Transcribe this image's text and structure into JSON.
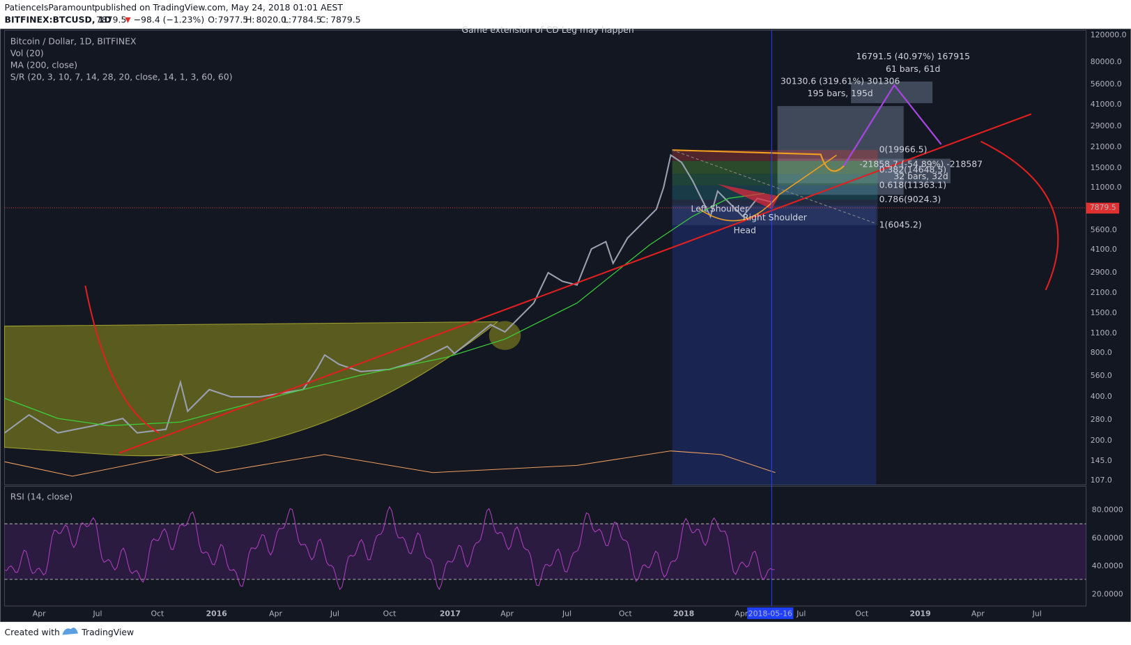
{
  "header": {
    "author": "PatienceIsParamount",
    "published": "published on TradingView.com, May 24, 2018 01:01 AEST"
  },
  "symbol_bar": {
    "symbol": "BITFINEX:BTCUSD, 1D",
    "last": "7879.5",
    "change": "−98.4 (−1.23%)",
    "open_label": "O:",
    "open": "7977.5",
    "high_label": "H:",
    "high": "8020.0",
    "low_label": "L:",
    "low": "7784.5",
    "close_label": "C:",
    "close": "7879.5"
  },
  "legend": [
    "Bitcoin / Dollar, 1D, BITFINEX",
    "Vol (20)",
    "MA (200, close)",
    "S/R (20, 3, 10, 7, 14, 28, 20, close, 14, 1, 3, 60, 60)"
  ],
  "price_axis": [
    "120000.0",
    "80000.0",
    "56000.0",
    "41000.0",
    "29000.0",
    "21000.0",
    "15000.0",
    "11000.0",
    "5600.0",
    "4100.0",
    "2900.0",
    "2100.0",
    "1500.0",
    "1100.0",
    "800.0",
    "560.0",
    "400.0",
    "280.0",
    "200.0",
    "145.0",
    "107.0"
  ],
  "current_price": "7879.5",
  "time_axis": [
    "Apr",
    "Jul",
    "Oct",
    "2016",
    "Apr",
    "Jul",
    "Oct",
    "2017",
    "Apr",
    "Jul",
    "Oct",
    "2018",
    "Apr",
    "Jul",
    "Oct",
    "2019",
    "Apr",
    "Jul"
  ],
  "cursor_date": "2018-05-16",
  "rsi": {
    "title": "RSI (14, close)",
    "axis": [
      "80.0000",
      "60.0000",
      "40.0000",
      "20.0000"
    ]
  },
  "annotations": {
    "top_note": "Game extension of CD Leg may happen",
    "fib": [
      "0(19966.5)",
      "0.382(14648.5)",
      "0.618(11363.1)",
      "0.786(9024.3)",
      "1(6045.2)"
    ],
    "measure_1": [
      "16791.5 (40.97%) 167915",
      "61 bars, 61d"
    ],
    "measure_2": [
      "30130.6 (319.61%) 301306",
      "195 bars, 195d"
    ],
    "measure_3": [
      "-21858.7 (-54.89%) -218587",
      "32 bars, 32d"
    ],
    "pattern": [
      "Left Shoulder",
      "Head",
      "Right Shoulder"
    ]
  },
  "footer": {
    "created": "Created with",
    "brand": "TradingView"
  }
}
